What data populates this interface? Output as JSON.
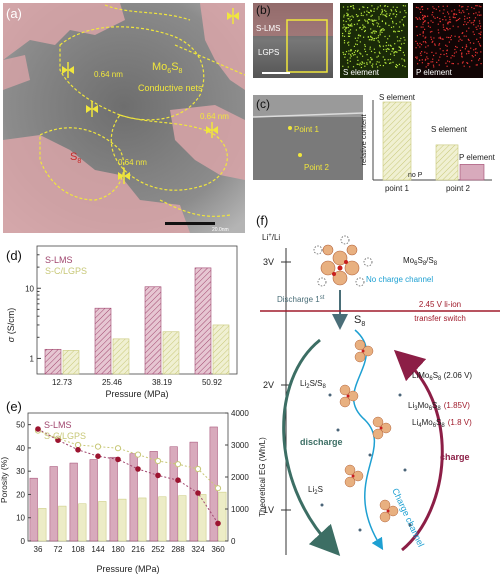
{
  "panel_a": {
    "label": "(a)",
    "phase_mo": "Mo",
    "phase_mo_sub1": "6",
    "phase_mo_mid": "S",
    "phase_mo_sub2": "8",
    "nets": "Conductive nets",
    "s8": "S",
    "s8_sub": "8",
    "d1": "0.64 nm",
    "d2": "0.64 nm",
    "d3": "0.64 nm",
    "scale": "20.0nm"
  },
  "panel_b": {
    "label": "(b)",
    "layer1": "S-LMS",
    "layer2": "LGPS",
    "map_s": "S element",
    "map_p": "P element"
  },
  "panel_c": {
    "label": "(c)",
    "point1": "Point 1",
    "point2": "Point 2",
    "ylabel": "relative content",
    "cat1": "point 1",
    "cat2": "point 2",
    "bar_label_1": "S element",
    "no_p": "no P",
    "bar_label_2s": "S element",
    "bar_label_2p": "P element"
  },
  "panel_d": {
    "label": "(d)",
    "xlabel": "Pressure (MPa)",
    "ylabel_sym": "σ",
    "ylabel_unit": "(S/cm)",
    "legend": [
      "S-LMS",
      "S-C/LGPS"
    ],
    "yticks": [
      "1",
      "10"
    ]
  },
  "panel_e": {
    "label": "(e)",
    "xlabel": "Pressure (MPa)",
    "ylabel_left": "Porosity (%)",
    "ylabel_right": "Theoretical EG (Wh/L)",
    "legend": [
      "S-LMS",
      "S-C/LGPS"
    ],
    "yticks_left": [
      "0",
      "10",
      "20",
      "30",
      "40",
      "50"
    ],
    "yticks_right": [
      "0",
      "1000",
      "2000",
      "3000",
      "4000"
    ]
  },
  "panel_f": {
    "label": "(f)",
    "axis_top": "Li",
    "axis_top_sup": "+",
    "axis_top_tail": "/Li",
    "v3": "3V",
    "v2": "2V",
    "v1": "1V",
    "cluster_mo": "Mo",
    "cluster_sub1": "6",
    "cluster_s": "S",
    "cluster_sub2": "8",
    "cluster_tail": "/S",
    "cluster_sub3": "8",
    "no_charge": "No charge channel",
    "discharge1": "Discharge 1",
    "discharge1_sup": "st",
    "switch_line1": "2.45 V  li-ion",
    "switch_line2": "transfer switch",
    "s8": "S",
    "s8_sub": "8",
    "li2s_s8": "Li",
    "li2s": "Li",
    "discharge": "discharge",
    "charge": "charge",
    "charge_channel": "Charge channel",
    "limo": "LiMo",
    "limo_v": "(2.06 V)",
    "li3": "Li",
    "li3_v": "(1.85V)",
    "li4": "Li",
    "li4_v": "(1.8 V)"
  },
  "colors": {
    "slms": "#a0466e",
    "sclgps": "#c8c878",
    "red_switch": "#a01c2c",
    "cyan": "#1ea0d2",
    "teal": "#3c6e64",
    "maroon": "#8c1e46"
  },
  "chart_data": [
    {
      "type": "bar",
      "panel": "d",
      "categories": [
        "12.73",
        "25.46",
        "38.19",
        "50.92"
      ],
      "series": [
        {
          "name": "S-LMS",
          "values": [
            1.35,
            5.2,
            10.5,
            19.5
          ]
        },
        {
          "name": "S-C/LGPS",
          "values": [
            1.3,
            1.9,
            2.4,
            3.0
          ]
        }
      ],
      "xlabel": "Pressure (MPa)",
      "ylabel": "σ (S/cm)",
      "yscale": "log",
      "ylim": [
        0.6,
        40
      ],
      "legend": "top-left"
    },
    {
      "type": "bar",
      "panel": "e",
      "categories": [
        "36",
        "72",
        "108",
        "144",
        "180",
        "216",
        "252",
        "288",
        "324",
        "360"
      ],
      "series": [
        {
          "name": "S-LMS",
          "values": [
            27,
            32,
            33.5,
            35,
            36,
            37.5,
            38.5,
            40.5,
            42.5,
            49
          ]
        },
        {
          "name": "S-C/LGPS",
          "values": [
            14,
            15,
            16,
            17,
            18,
            18.5,
            19,
            19.5,
            20,
            21
          ]
        }
      ],
      "line_series": [
        {
          "name": "S-LMS",
          "axis": "right",
          "values": [
            3500,
            3150,
            2850,
            2650,
            2550,
            2250,
            2050,
            1900,
            1500,
            550
          ]
        },
        {
          "name": "S-C/LGPS",
          "axis": "right",
          "values": [
            3450,
            3200,
            3000,
            2950,
            2900,
            2700,
            2500,
            2400,
            2250,
            1650
          ]
        }
      ],
      "xlabel": "Pressure (MPa)",
      "ylabel": "Porosity (%)",
      "ylabel_right": "Theoretical EG (Wh/L)",
      "ylim": [
        0,
        55
      ],
      "ylim_right": [
        0,
        4000
      ],
      "legend": "top-left"
    },
    {
      "type": "bar",
      "panel": "c",
      "categories": [
        "point 1",
        "point 2"
      ],
      "series": [
        {
          "name": "S element",
          "values": [
            1.0,
            0.45
          ]
        },
        {
          "name": "P element",
          "values": [
            0,
            0.2
          ]
        }
      ],
      "ylabel": "relative content"
    }
  ]
}
